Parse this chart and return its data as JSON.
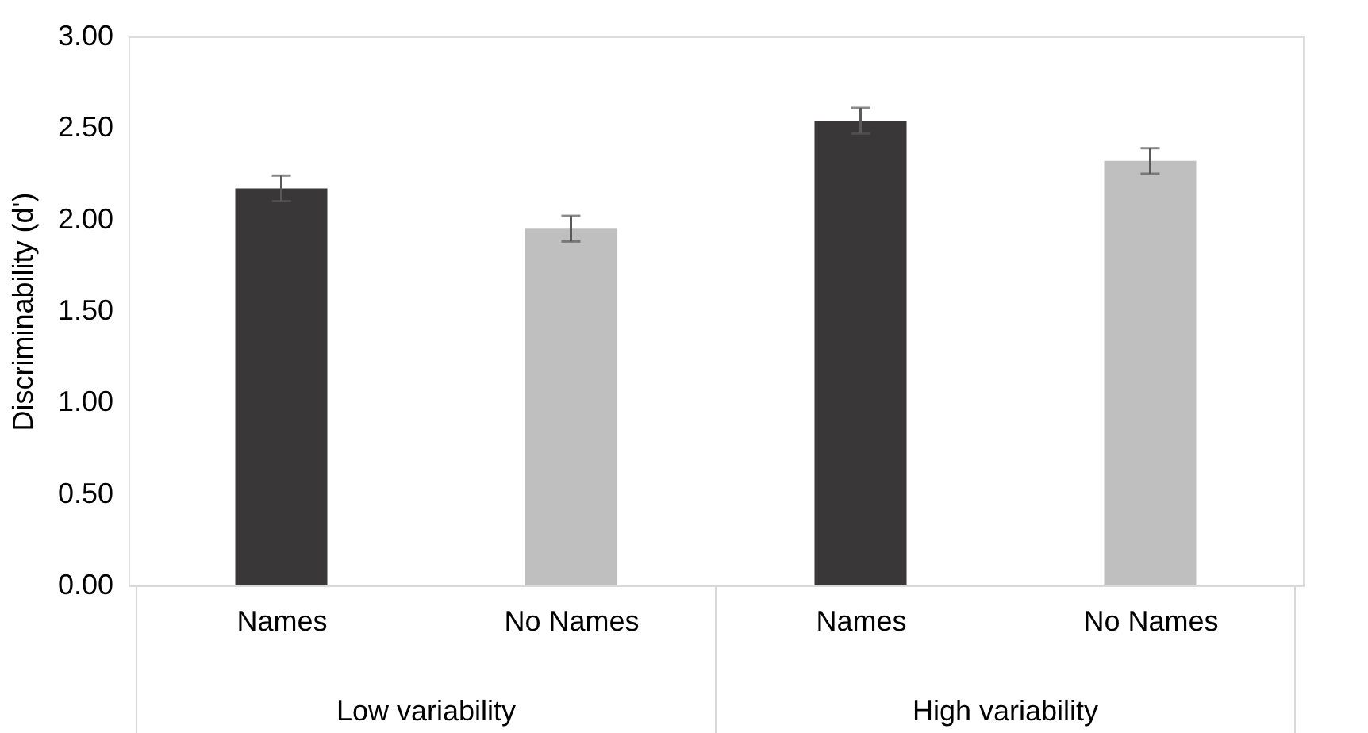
{
  "chart_data": {
    "type": "bar",
    "ylabel": "Discriminability (d')",
    "categories": [
      "Names",
      "No Names",
      "Names",
      "No Names"
    ],
    "values": [
      2.17,
      1.95,
      2.54,
      2.32
    ],
    "errors": [
      0.07,
      0.07,
      0.07,
      0.07
    ],
    "colors": [
      "#393738",
      "#bfbfbf",
      "#393738",
      "#bfbfbf"
    ],
    "ylim": [
      0,
      3
    ],
    "yticks": [
      {
        "value": 0,
        "label": "0.00"
      },
      {
        "value": 0.5,
        "label": "0.50"
      },
      {
        "value": 1,
        "label": "1.00"
      },
      {
        "value": 1.5,
        "label": "1.50"
      },
      {
        "value": 2,
        "label": "2.00"
      },
      {
        "value": 2.5,
        "label": "2.50"
      },
      {
        "value": 3,
        "label": "3.00"
      }
    ],
    "grid": false,
    "annotations": [
      "Low variability",
      "High variability"
    ]
  }
}
